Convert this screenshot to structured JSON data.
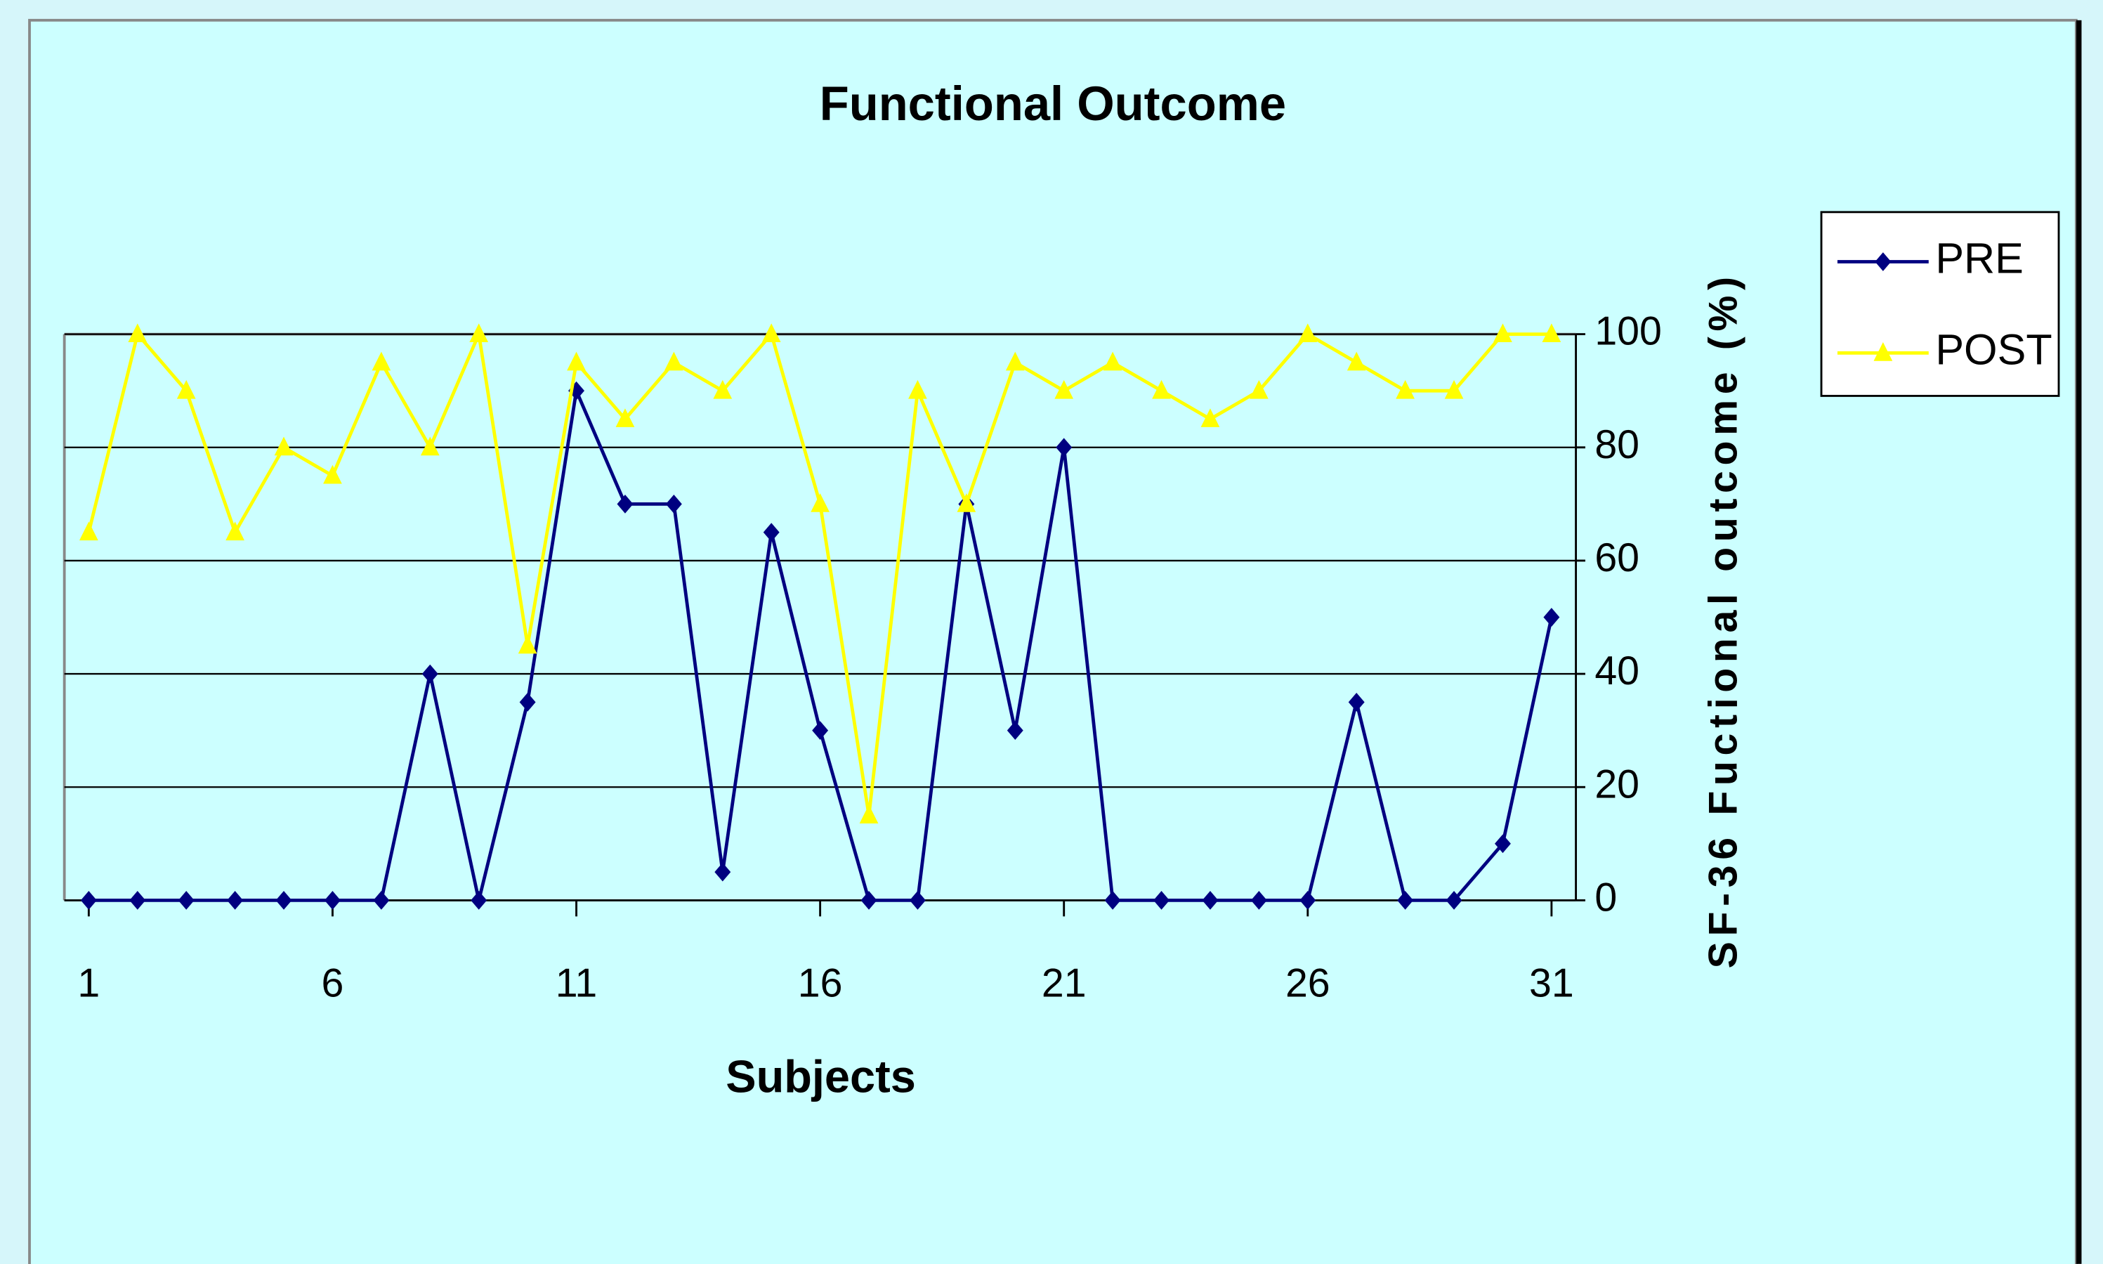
{
  "chart_data": {
    "type": "line",
    "title": "Functional Outcome",
    "x_label": "Subjects",
    "y_label": "SF-36 Fuctional outcome (%)",
    "x": [
      1,
      2,
      3,
      4,
      5,
      6,
      7,
      8,
      9,
      10,
      11,
      12,
      13,
      14,
      15,
      16,
      17,
      18,
      19,
      20,
      21,
      22,
      23,
      24,
      25,
      26,
      27,
      28,
      29,
      30,
      31
    ],
    "xlim": [
      0.5,
      31.5
    ],
    "xticks": [
      1,
      6,
      11,
      16,
      21,
      26,
      31
    ],
    "ylim": [
      0,
      100
    ],
    "yticks": [
      0,
      20,
      40,
      60,
      80,
      100
    ],
    "grid": true,
    "legend": "right",
    "series": [
      {
        "name": "PRE",
        "color": "#000080",
        "marker": "diamond",
        "values": [
          0,
          0,
          0,
          0,
          0,
          0,
          0,
          40,
          0,
          35,
          90,
          70,
          70,
          5,
          65,
          30,
          0,
          0,
          70,
          30,
          80,
          0,
          0,
          0,
          0,
          0,
          35,
          0,
          0,
          10,
          50
        ]
      },
      {
        "name": "POST",
        "color": "#ffff00",
        "marker": "triangle",
        "values": [
          65,
          100,
          90,
          65,
          80,
          75,
          95,
          80,
          100,
          45,
          95,
          85,
          95,
          90,
          100,
          70,
          15,
          90,
          70,
          95,
          90,
          95,
          90,
          85,
          90,
          100,
          95,
          90,
          90,
          100,
          100
        ]
      }
    ]
  }
}
